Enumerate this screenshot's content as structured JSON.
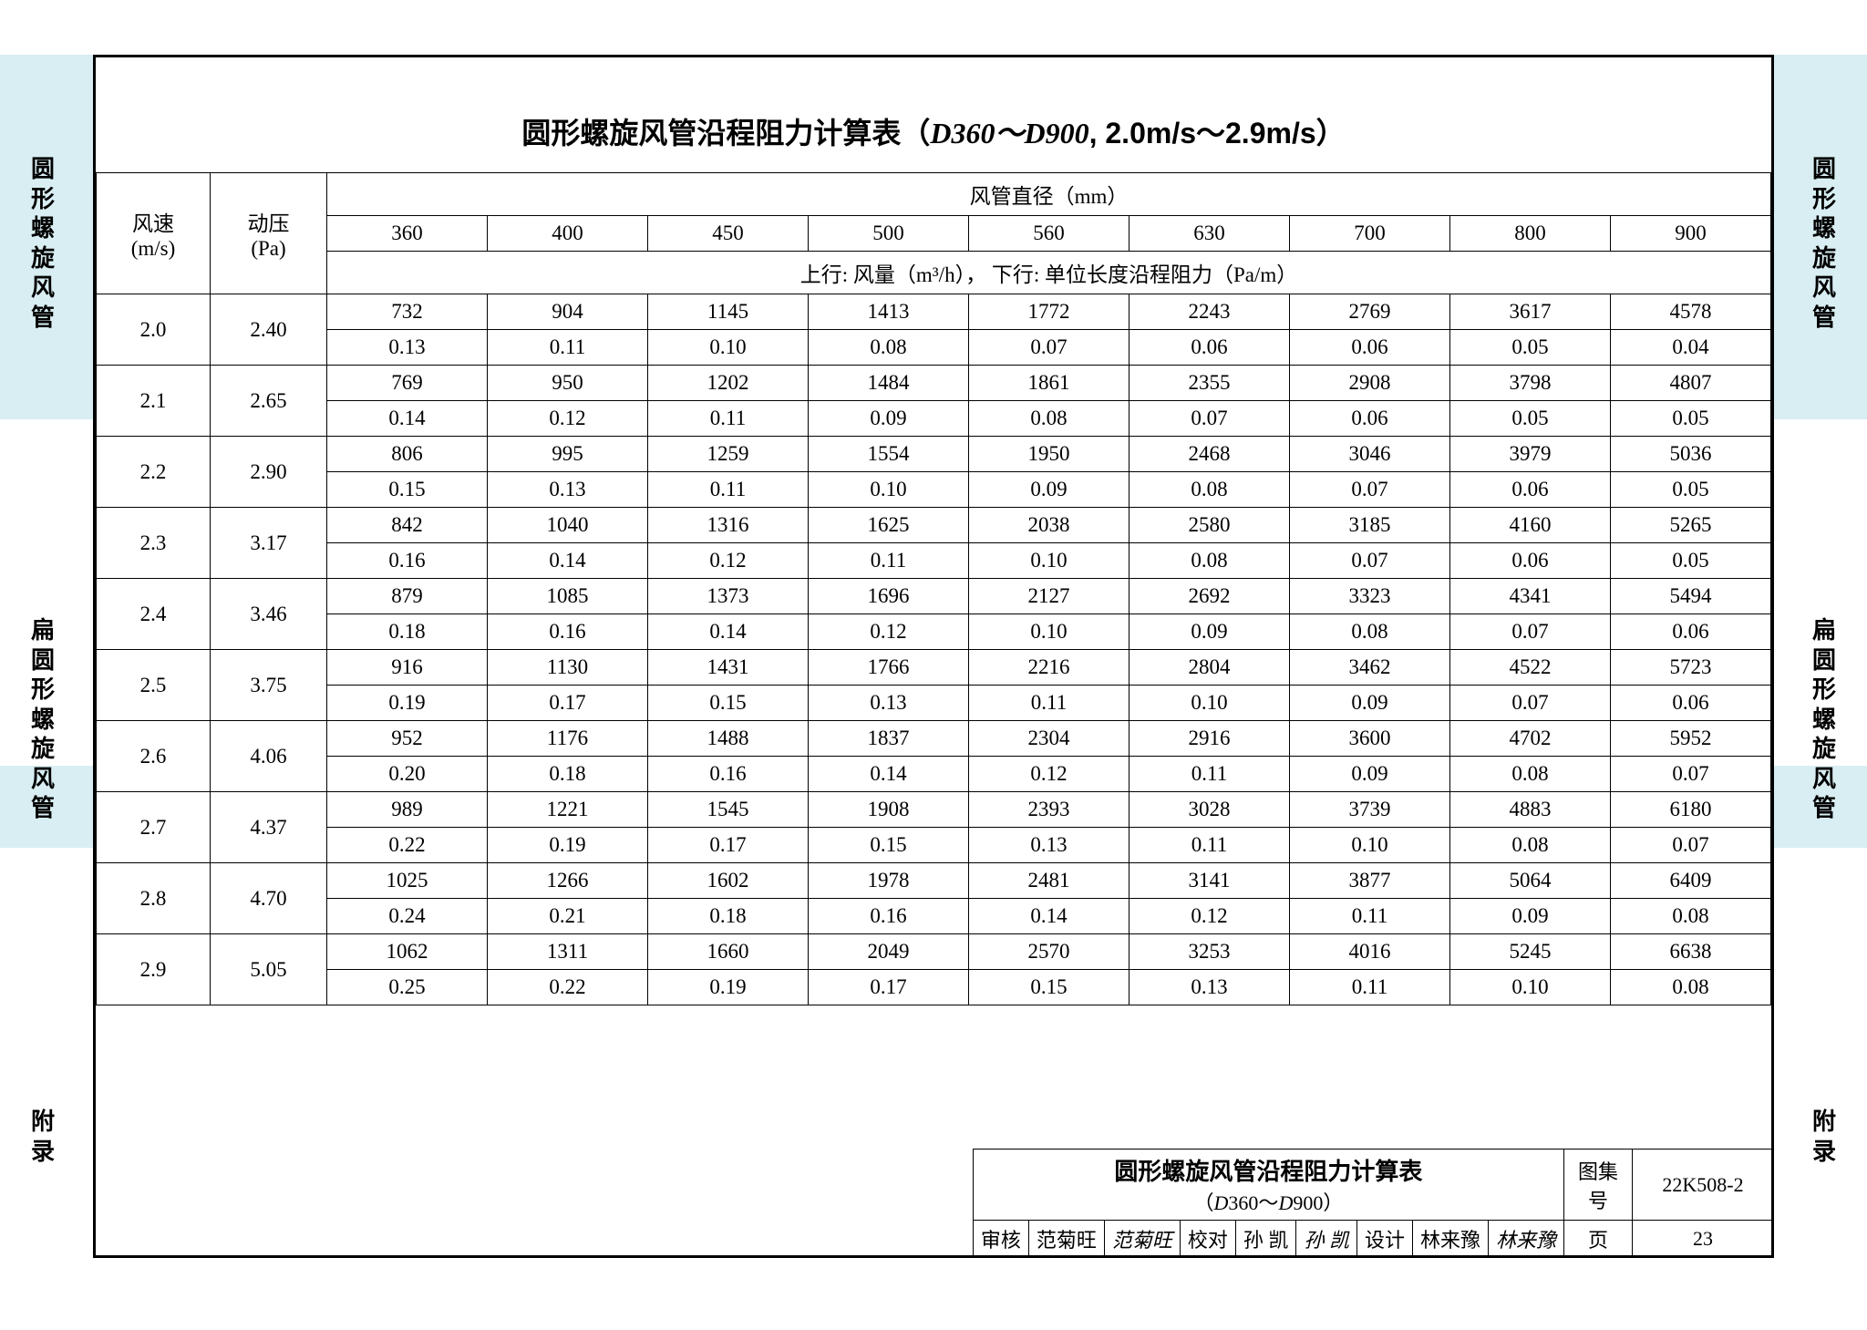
{
  "side_tabs": {
    "tab1": "圆形螺旋风管",
    "tab2": "扁圆形螺旋风管",
    "tab3": "附录"
  },
  "title_prefix": "圆形螺旋风管沿程阻力计算表（",
  "title_range": "D360～D900",
  "title_suffix": ", 2.0m/s～2.9m/s）",
  "header": {
    "speed": "风速\n(m/s)",
    "pressure": "动压\n(Pa)",
    "diameter_group": "风管直径（mm）",
    "row_note": "上行: 风量（m³/h），  下行: 单位长度沿程阻力（Pa/m）",
    "diameters": [
      "360",
      "400",
      "450",
      "500",
      "560",
      "630",
      "700",
      "800",
      "900"
    ]
  },
  "rows": [
    {
      "speed": "2.0",
      "press": "2.40",
      "flow": [
        "732",
        "904",
        "1145",
        "1413",
        "1772",
        "2243",
        "2769",
        "3617",
        "4578"
      ],
      "loss": [
        "0.13",
        "0.11",
        "0.10",
        "0.08",
        "0.07",
        "0.06",
        "0.06",
        "0.05",
        "0.04"
      ]
    },
    {
      "speed": "2.1",
      "press": "2.65",
      "flow": [
        "769",
        "950",
        "1202",
        "1484",
        "1861",
        "2355",
        "2908",
        "3798",
        "4807"
      ],
      "loss": [
        "0.14",
        "0.12",
        "0.11",
        "0.09",
        "0.08",
        "0.07",
        "0.06",
        "0.05",
        "0.05"
      ]
    },
    {
      "speed": "2.2",
      "press": "2.90",
      "flow": [
        "806",
        "995",
        "1259",
        "1554",
        "1950",
        "2468",
        "3046",
        "3979",
        "5036"
      ],
      "loss": [
        "0.15",
        "0.13",
        "0.11",
        "0.10",
        "0.09",
        "0.08",
        "0.07",
        "0.06",
        "0.05"
      ]
    },
    {
      "speed": "2.3",
      "press": "3.17",
      "flow": [
        "842",
        "1040",
        "1316",
        "1625",
        "2038",
        "2580",
        "3185",
        "4160",
        "5265"
      ],
      "loss": [
        "0.16",
        "0.14",
        "0.12",
        "0.11",
        "0.10",
        "0.08",
        "0.07",
        "0.06",
        "0.05"
      ]
    },
    {
      "speed": "2.4",
      "press": "3.46",
      "flow": [
        "879",
        "1085",
        "1373",
        "1696",
        "2127",
        "2692",
        "3323",
        "4341",
        "5494"
      ],
      "loss": [
        "0.18",
        "0.16",
        "0.14",
        "0.12",
        "0.10",
        "0.09",
        "0.08",
        "0.07",
        "0.06"
      ]
    },
    {
      "speed": "2.5",
      "press": "3.75",
      "flow": [
        "916",
        "1130",
        "1431",
        "1766",
        "2216",
        "2804",
        "3462",
        "4522",
        "5723"
      ],
      "loss": [
        "0.19",
        "0.17",
        "0.15",
        "0.13",
        "0.11",
        "0.10",
        "0.09",
        "0.07",
        "0.06"
      ]
    },
    {
      "speed": "2.6",
      "press": "4.06",
      "flow": [
        "952",
        "1176",
        "1488",
        "1837",
        "2304",
        "2916",
        "3600",
        "4702",
        "5952"
      ],
      "loss": [
        "0.20",
        "0.18",
        "0.16",
        "0.14",
        "0.12",
        "0.11",
        "0.09",
        "0.08",
        "0.07"
      ]
    },
    {
      "speed": "2.7",
      "press": "4.37",
      "flow": [
        "989",
        "1221",
        "1545",
        "1908",
        "2393",
        "3028",
        "3739",
        "4883",
        "6180"
      ],
      "loss": [
        "0.22",
        "0.19",
        "0.17",
        "0.15",
        "0.13",
        "0.11",
        "0.10",
        "0.08",
        "0.07"
      ]
    },
    {
      "speed": "2.8",
      "press": "4.70",
      "flow": [
        "1025",
        "1266",
        "1602",
        "1978",
        "2481",
        "3141",
        "3877",
        "5064",
        "6409"
      ],
      "loss": [
        "0.24",
        "0.21",
        "0.18",
        "0.16",
        "0.14",
        "0.12",
        "0.11",
        "0.09",
        "0.08"
      ]
    },
    {
      "speed": "2.9",
      "press": "5.05",
      "flow": [
        "1062",
        "1311",
        "1660",
        "2049",
        "2570",
        "3253",
        "4016",
        "5245",
        "6638"
      ],
      "loss": [
        "0.25",
        "0.22",
        "0.19",
        "0.17",
        "0.15",
        "0.13",
        "0.11",
        "0.10",
        "0.08"
      ]
    }
  ],
  "footer": {
    "block_title": "圆形螺旋风管沿程阻力计算表",
    "block_sub": "（D360～D900）",
    "atlas_label": "图集号",
    "atlas_no": "22K508-2",
    "review": "审核",
    "review_name": "范菊旺",
    "review_sig": "范菊旺",
    "proof": "校对",
    "proof_name": "孙  凯",
    "proof_sig": "孙 凯",
    "design": "设计",
    "design_name": "林来豫",
    "design_sig": "林来豫",
    "page_label": "页",
    "page_no": "23"
  }
}
